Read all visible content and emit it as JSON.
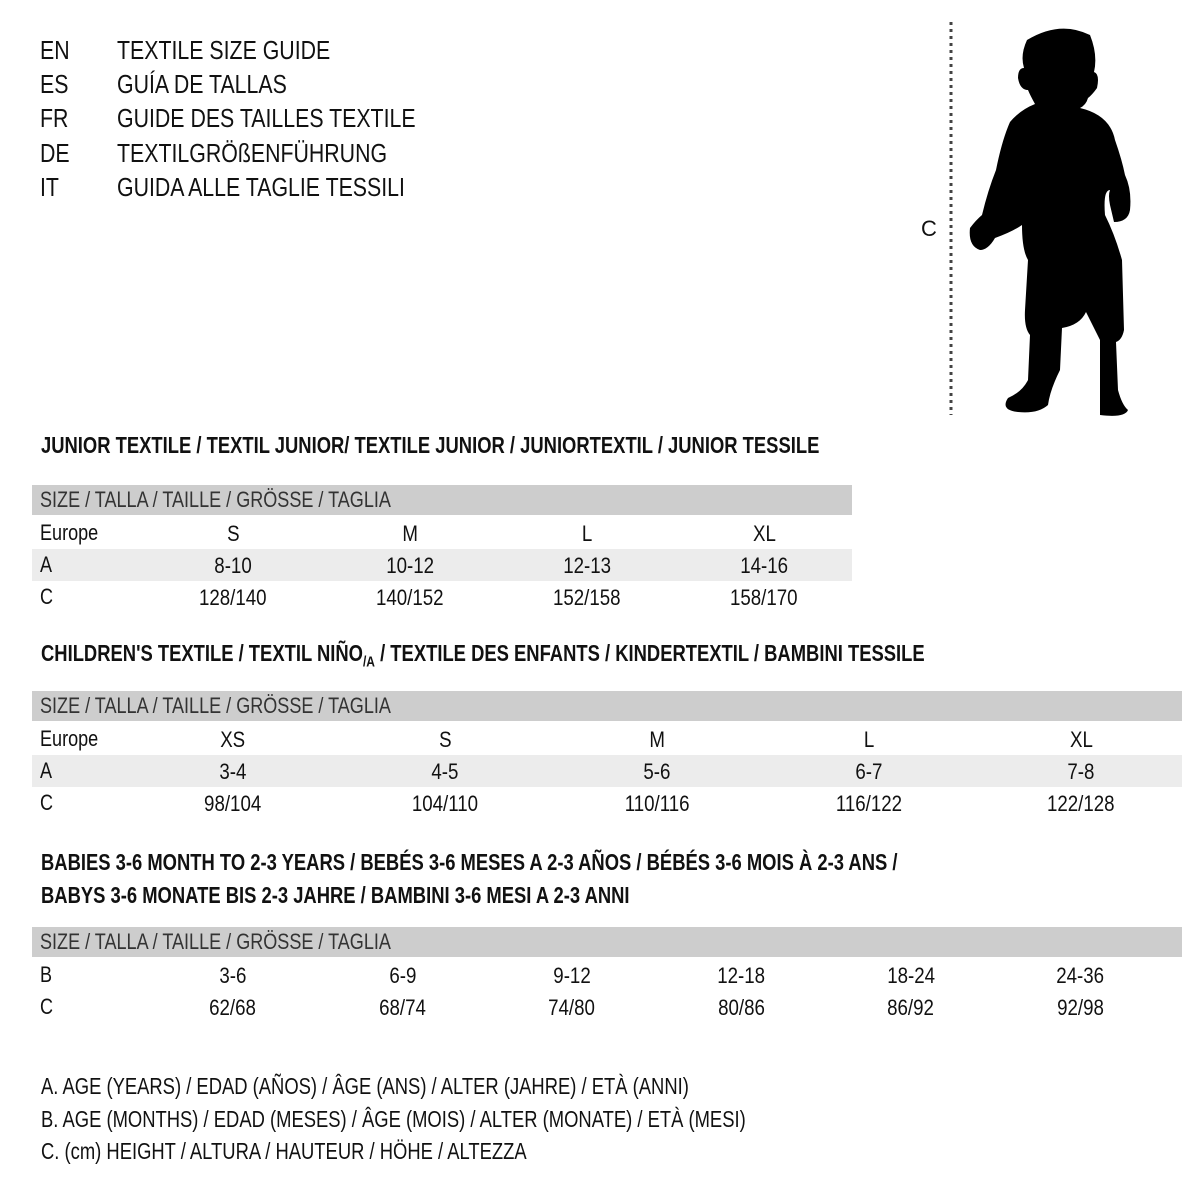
{
  "languages": [
    {
      "code": "EN",
      "text": "TEXTILE SIZE GUIDE"
    },
    {
      "code": "ES",
      "text": "GUÍA DE TALLAS"
    },
    {
      "code": "FR",
      "text": "GUIDE DES TAILLES TEXTILE"
    },
    {
      "code": "DE",
      "text": "TEXTILGRÖßENFÜHRUNG"
    },
    {
      "code": "IT",
      "text": "GUIDA ALLE TAGLIE TESSILI"
    }
  ],
  "figure": {
    "measure_label": "C",
    "icon": "child-silhouette-icon"
  },
  "junior": {
    "title": "JUNIOR TEXTILE / TEXTIL JUNIOR/ TEXTILE JUNIOR / JUNIORTEXTIL / JUNIOR TESSILE",
    "header": "SIZE / TALLA / TAILLE / GRÖSSE / TAGLIA",
    "rows": [
      {
        "label": "Europe",
        "cells": [
          "S",
          "M",
          "L",
          "XL"
        ]
      },
      {
        "label": "A",
        "cells": [
          "8-10",
          "10-12",
          "12-13",
          "14-16"
        ]
      },
      {
        "label": "C",
        "cells": [
          "128/140",
          "140/152",
          "152/158",
          "158/170"
        ]
      }
    ]
  },
  "children": {
    "title_before": "CHILDREN'S TEXTILE / TEXTIL NIÑO",
    "title_sub": "/A",
    "title_after": " / TEXTILE DES ENFANTS / KINDERTEXTIL / BAMBINI TESSILE",
    "header": "SIZE / TALLA / TAILLE / GRÖSSE / TAGLIA",
    "rows": [
      {
        "label": "Europe",
        "cells": [
          "XS",
          "S",
          "M",
          "L",
          "XL"
        ]
      },
      {
        "label": "A",
        "cells": [
          "3-4",
          "4-5",
          "5-6",
          "6-7",
          "7-8"
        ]
      },
      {
        "label": "C",
        "cells": [
          "98/104",
          "104/110",
          "110/116",
          "116/122",
          "122/128"
        ]
      }
    ]
  },
  "babies": {
    "title_line1": "BABIES 3-6 MONTH TO 2-3 YEARS / BEBÉS 3-6 MESES A 2-3 AÑOS / BÉBÉS 3-6 MOIS À 2-3 ANS /",
    "title_line2": "BABYS 3-6 MONATE BIS 2-3 JAHRE / BAMBINI 3-6 MESI A 2-3 ANNI",
    "header": "SIZE / TALLA / TAILLE / GRÖSSE / TAGLIA",
    "rows": [
      {
        "label": "B",
        "cells": [
          "3-6",
          "6-9",
          "9-12",
          "12-18",
          "18-24",
          "24-36"
        ]
      },
      {
        "label": "C",
        "cells": [
          "62/68",
          "68/74",
          "74/80",
          "80/86",
          "86/92",
          "92/98"
        ]
      }
    ]
  },
  "legend": [
    "A. AGE (YEARS) / EDAD (AÑOS) / ÂGE (ANS) / ALTER (JAHRE) / ETÀ (ANNI)",
    "B. AGE (MONTHS) / EDAD (MESES) / ÂGE (MOIS) / ALTER (MONATE) / ETÀ (MESI)",
    "C. (cm) HEIGHT / ALTURA / HAUTEUR / HÖHE / ALTEZZA"
  ]
}
